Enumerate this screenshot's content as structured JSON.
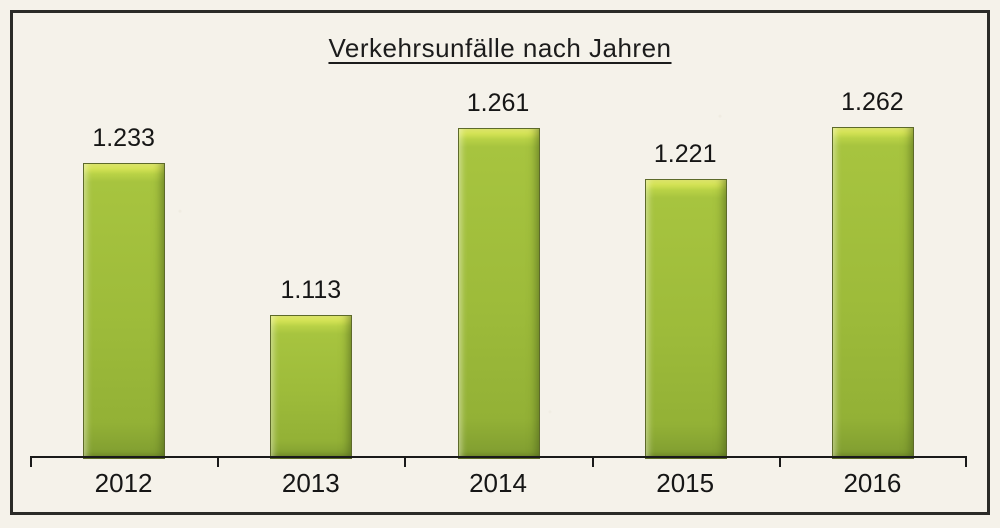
{
  "chart_data": {
    "type": "bar",
    "title": "Verkehrsunfälle nach Jahren",
    "categories": [
      "2012",
      "2013",
      "2014",
      "2015",
      "2016"
    ],
    "values": [
      1233,
      1113,
      1261,
      1221,
      1262
    ],
    "value_labels": [
      "1.233",
      "1.113",
      "1.261",
      "1.221",
      "1.262"
    ],
    "xlabel": "",
    "ylabel": "",
    "ylim": [
      1000,
      1300
    ],
    "grid": false,
    "legend": "none",
    "colors": {
      "bar": "#9dbb3a",
      "bar_highlight": "#d3e254",
      "bar_shadow": "#7f9c30",
      "frame": "#2b2b28",
      "paper": "#f5f2ea",
      "ink": "#1c1c1c"
    }
  }
}
